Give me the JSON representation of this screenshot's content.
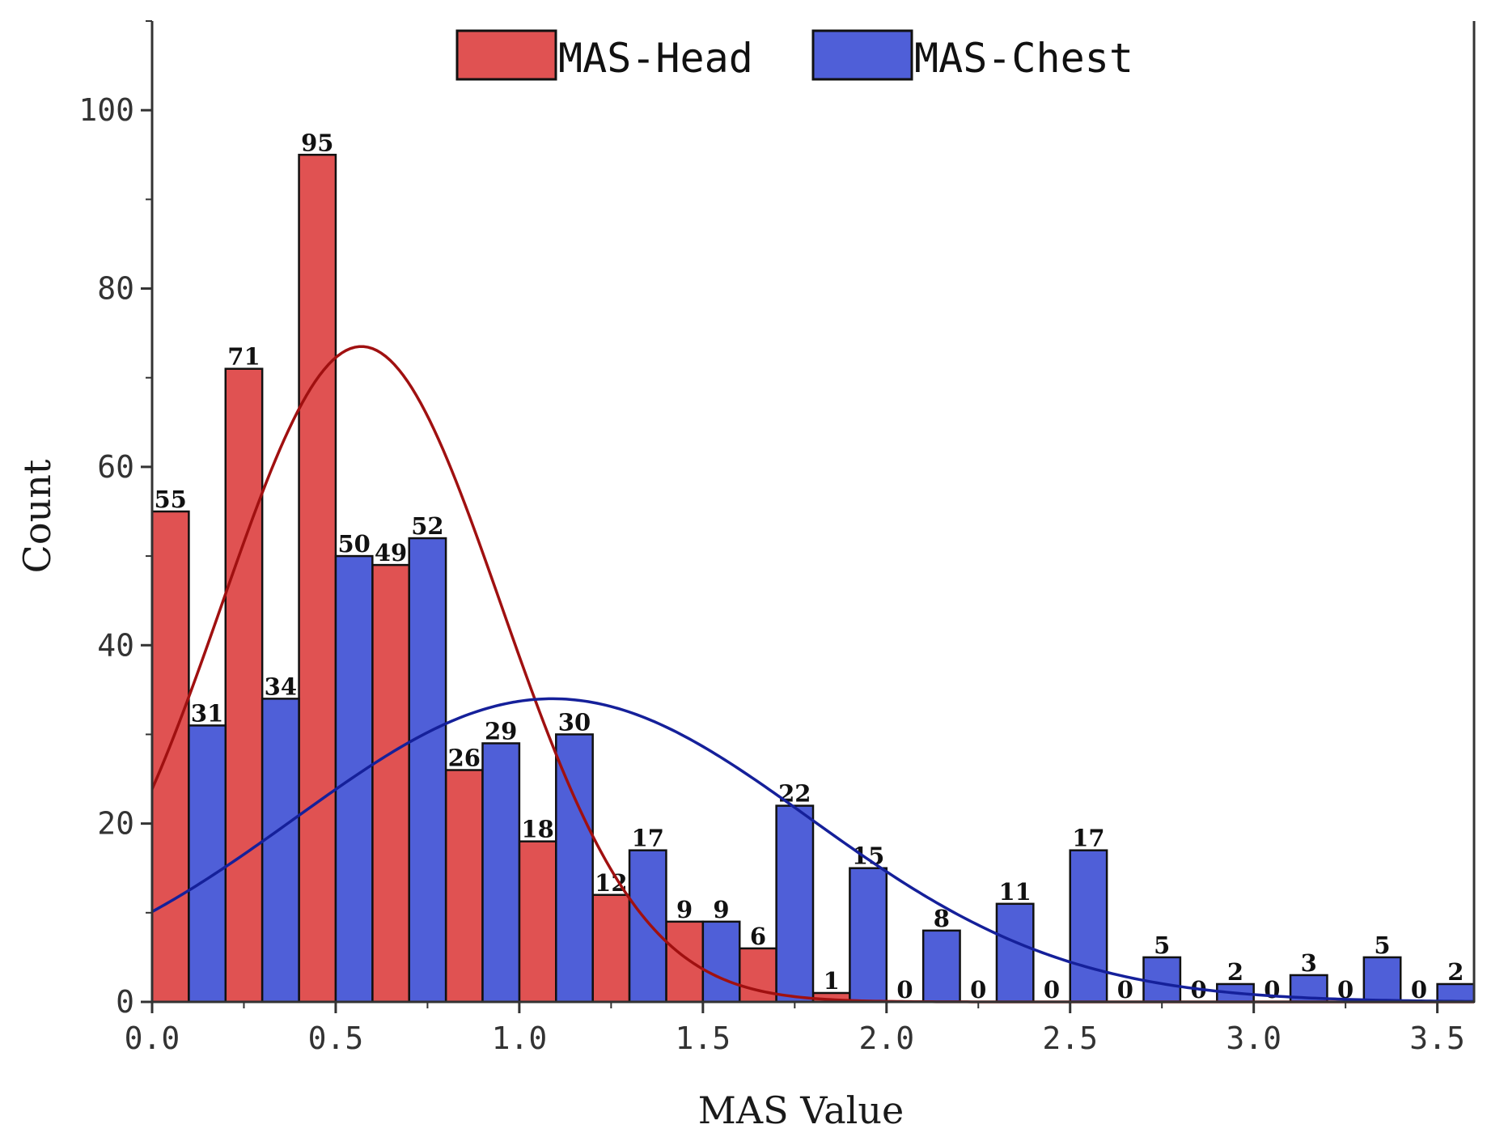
{
  "chart_data": {
    "type": "bar",
    "xlabel": "MAS Value",
    "ylabel": "Count",
    "xlim": [
      0.0,
      3.6
    ],
    "ylim": [
      0,
      110
    ],
    "x_ticks": [
      "0.0",
      "0.5",
      "1.0",
      "1.5",
      "2.0",
      "2.5",
      "3.0",
      "3.5"
    ],
    "y_ticks": [
      "0",
      "20",
      "40",
      "60",
      "80",
      "100"
    ],
    "bin_width": 0.2,
    "legend_position": "top-center",
    "grid": false,
    "series": [
      {
        "name": "MAS-Head",
        "color": "#E05252",
        "fit_color": "#A01010",
        "bin_start": [
          0.0,
          0.2,
          0.4,
          0.6,
          0.8,
          1.0,
          1.2,
          1.4,
          1.6,
          1.8,
          2.0,
          2.2,
          2.4,
          2.6,
          2.8,
          3.0,
          3.2,
          3.4
        ],
        "values": [
          55,
          71,
          95,
          49,
          26,
          18,
          12,
          9,
          6,
          1,
          0,
          0,
          0,
          0,
          0,
          0,
          0,
          0
        ],
        "labels": [
          "55",
          "71",
          "95",
          "49",
          "26",
          "18",
          "12",
          "9",
          "6",
          "1",
          "0",
          "0",
          "0",
          "0",
          "0",
          "0",
          "0",
          "0"
        ],
        "fit": {
          "type": "normal",
          "mean": 0.57,
          "sd": 0.38,
          "peak": 73.5
        }
      },
      {
        "name": "MAS-Chest",
        "color": "#4F5FD8",
        "fit_color": "#15209A",
        "bin_start": [
          0.1,
          0.3,
          0.5,
          0.7,
          0.9,
          1.1,
          1.3,
          1.5,
          1.7,
          1.9,
          2.1,
          2.3,
          2.5,
          2.7,
          2.9,
          3.1,
          3.3,
          3.5
        ],
        "values": [
          31,
          34,
          50,
          52,
          29,
          30,
          17,
          9,
          22,
          15,
          8,
          11,
          17,
          5,
          2,
          3,
          5,
          2
        ],
        "labels": [
          "31",
          "34",
          "50",
          "52",
          "29",
          "30",
          "17",
          "9",
          "22",
          "15",
          "8",
          "11",
          "17",
          "5",
          "2",
          "3",
          "5",
          "2"
        ],
        "fit": {
          "type": "normal",
          "mean": 1.09,
          "sd": 0.7,
          "peak": 34.0
        }
      }
    ]
  }
}
